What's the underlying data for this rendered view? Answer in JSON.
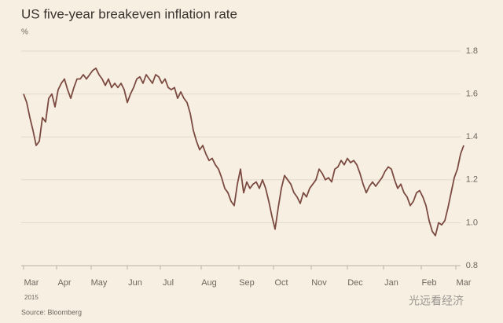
{
  "chart_data": {
    "type": "line",
    "title": "US five-year breakeven inflation rate",
    "y_unit": "%",
    "source": "Source: Bloomberg",
    "year_label": "2015",
    "watermark": "光远看经济",
    "series": [
      {
        "name": "US five-year breakeven inflation rate",
        "color": "#7b4a40",
        "values": [
          1.6,
          1.56,
          1.49,
          1.43,
          1.36,
          1.38,
          1.49,
          1.47,
          1.58,
          1.6,
          1.54,
          1.62,
          1.65,
          1.67,
          1.62,
          1.58,
          1.63,
          1.67,
          1.67,
          1.69,
          1.67,
          1.69,
          1.71,
          1.72,
          1.69,
          1.67,
          1.64,
          1.67,
          1.63,
          1.65,
          1.63,
          1.65,
          1.62,
          1.56,
          1.6,
          1.63,
          1.67,
          1.68,
          1.65,
          1.69,
          1.67,
          1.65,
          1.69,
          1.68,
          1.65,
          1.67,
          1.63,
          1.62,
          1.63,
          1.58,
          1.61,
          1.58,
          1.56,
          1.51,
          1.43,
          1.38,
          1.34,
          1.36,
          1.32,
          1.29,
          1.3,
          1.27,
          1.25,
          1.21,
          1.16,
          1.14,
          1.1,
          1.08,
          1.18,
          1.25,
          1.14,
          1.19,
          1.16,
          1.18,
          1.19,
          1.16,
          1.2,
          1.16,
          1.1,
          1.03,
          0.97,
          1.07,
          1.16,
          1.22,
          1.2,
          1.18,
          1.14,
          1.12,
          1.09,
          1.14,
          1.12,
          1.16,
          1.18,
          1.2,
          1.25,
          1.23,
          1.2,
          1.21,
          1.19,
          1.25,
          1.26,
          1.29,
          1.27,
          1.3,
          1.28,
          1.29,
          1.27,
          1.23,
          1.18,
          1.14,
          1.17,
          1.19,
          1.17,
          1.19,
          1.21,
          1.24,
          1.26,
          1.25,
          1.2,
          1.16,
          1.18,
          1.14,
          1.12,
          1.08,
          1.1,
          1.14,
          1.15,
          1.12,
          1.08,
          1.01,
          0.96,
          0.94,
          1.0,
          0.99,
          1.01,
          1.07,
          1.14,
          1.21,
          1.25,
          1.32,
          1.36
        ]
      }
    ],
    "xlim": [
      0,
      140
    ],
    "xticks": [
      {
        "value": 2.5,
        "label": "Mar"
      },
      {
        "value": 13,
        "label": "Apr"
      },
      {
        "value": 24,
        "label": "May"
      },
      {
        "value": 35.5,
        "label": "Jun"
      },
      {
        "value": 46,
        "label": "Jul"
      },
      {
        "value": 59,
        "label": "Aug"
      },
      {
        "value": 71,
        "label": "Sep"
      },
      {
        "value": 82,
        "label": "Oct"
      },
      {
        "value": 94,
        "label": "Nov"
      },
      {
        "value": 105.5,
        "label": "Dec"
      },
      {
        "value": 117,
        "label": "Jan"
      },
      {
        "value": 129,
        "label": "Feb"
      },
      {
        "value": 140,
        "label": "Mar"
      }
    ],
    "ylim": [
      0.8,
      1.8
    ],
    "yticks": [
      0.8,
      {
        "value": 1,
        "label": "1.0"
      },
      1.2,
      1.4,
      1.6,
      1.8
    ],
    "grid": true
  }
}
